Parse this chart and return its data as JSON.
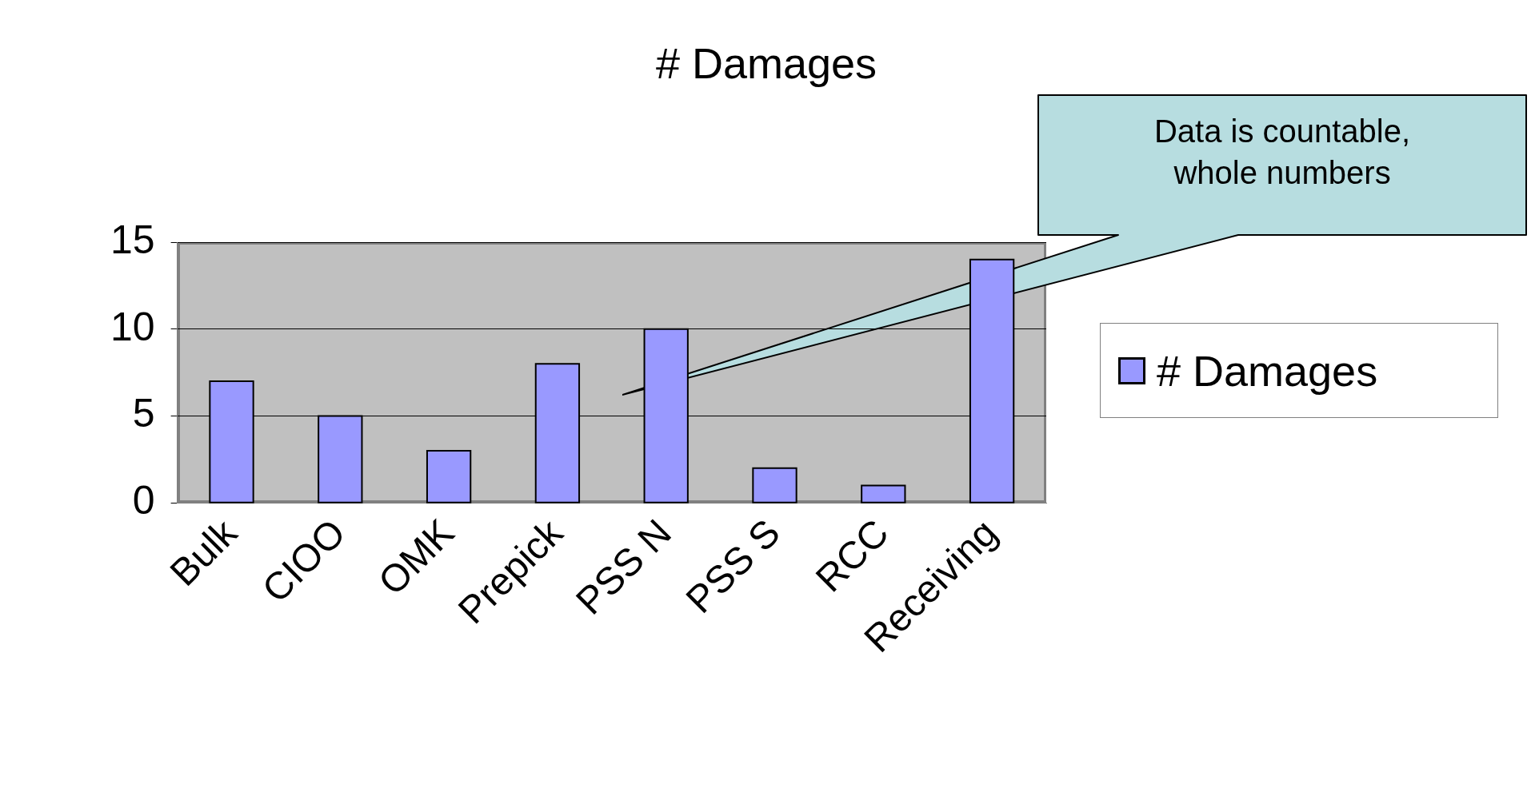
{
  "chart_data": {
    "type": "bar",
    "title": "# Damages",
    "categories": [
      "Bulk",
      "CIOO",
      "OMK",
      "Prepick",
      "PSS N",
      "PSS S",
      "RCC",
      "Receiving"
    ],
    "series": [
      {
        "name": "# Damages",
        "color": "#9999ff",
        "values": [
          7,
          5,
          3,
          8,
          10,
          2,
          1,
          14
        ]
      }
    ],
    "ylim": [
      0,
      15
    ],
    "yticks": [
      0,
      5,
      10,
      15
    ],
    "grid": "y",
    "legend": "right",
    "annotations": [
      "Data is countable, whole numbers"
    ]
  }
}
